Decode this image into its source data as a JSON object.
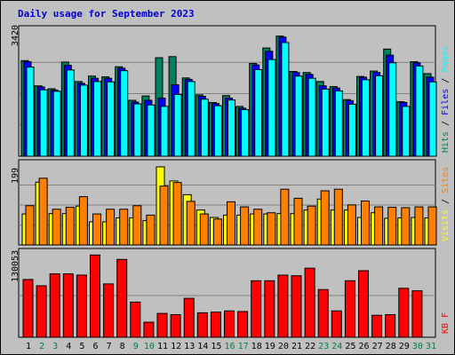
{
  "chart_data": {
    "type": "bar",
    "title": "Daily usage for September 2023",
    "x": [
      "1",
      "2",
      "3",
      "4",
      "5",
      "6",
      "7",
      "8",
      "9",
      "10",
      "11",
      "12",
      "13",
      "14",
      "15",
      "16",
      "17",
      "18",
      "19",
      "20",
      "21",
      "22",
      "23",
      "24",
      "25",
      "26",
      "27",
      "28",
      "29",
      "30",
      "31"
    ],
    "weekend_days": [
      2,
      3,
      9,
      10,
      16,
      17,
      23,
      24,
      30,
      31
    ],
    "colors": {
      "hits": "#00805c",
      "files": "#0000ff",
      "pages": "#00ffff",
      "visits": "#ffff00",
      "sites": "#ff8000",
      "kbytes": "#ff0000",
      "weekday_label": "#000000",
      "weekend_label": "#008040"
    },
    "panels": [
      {
        "ymax_label": "3420",
        "ylim": [
          0,
          3420
        ],
        "side_labels": [
          {
            "text": "Hits",
            "color": "#00805c"
          },
          {
            "text": "Files",
            "color": "#0000ff"
          },
          {
            "text": "Pages",
            "color": "#00ffff"
          }
        ],
        "series": [
          {
            "name": "Hits",
            "color": "#00805c",
            "values": [
              2650,
              1950,
              1870,
              2610,
              2070,
              2220,
              2200,
              2480,
              1550,
              1670,
              2730,
              2760,
              2170,
              1700,
              1490,
              1680,
              1380,
              2570,
              3000,
              3330,
              2350,
              2320,
              2070,
              1930,
              1570,
              2210,
              2360,
              2970,
              1510,
              2620,
              2290
            ]
          },
          {
            "name": "Files",
            "color": "#0000ff",
            "values": [
              2620,
              1920,
              1830,
              2520,
              2020,
              2160,
              2160,
              2440,
              1500,
              1550,
              1610,
              1980,
              2130,
              1660,
              1460,
              1610,
              1330,
              2530,
              2910,
              3300,
              2320,
              2270,
              1950,
              1890,
              1540,
              2190,
              2320,
              2800,
              1490,
              2590,
              2190
            ]
          },
          {
            "name": "Pages",
            "color": "#00ffff",
            "values": [
              2470,
              1840,
              1800,
              2390,
              1970,
              2070,
              2060,
              2370,
              1450,
              1420,
              1380,
              1710,
              2070,
              1580,
              1400,
              1560,
              1290,
              2400,
              2680,
              3150,
              2220,
              2160,
              1860,
              1810,
              1440,
              2120,
              2230,
              2590,
              1380,
              2500,
              2060
            ]
          }
        ]
      },
      {
        "ymax_label": "199",
        "ylim": [
          0,
          199
        ],
        "side_labels": [
          {
            "text": "Visits",
            "color": "#ffff00"
          },
          {
            "text": "Sites",
            "color": "#ff8000"
          }
        ],
        "series": [
          {
            "name": "Visits",
            "color": "#ffff00",
            "values": [
              79,
              160,
              80,
              80,
              99,
              59,
              59,
              69,
              69,
              62,
              199,
              163,
              128,
              89,
              70,
              76,
              76,
              79,
              79,
              80,
              80,
              89,
              117,
              89,
              89,
              70,
              82,
              68,
              69,
              70,
              69
            ]
          },
          {
            "name": "Sites",
            "color": "#ff8000",
            "values": [
              100,
              170,
              91,
              96,
              123,
              79,
              91,
              91,
              100,
              76,
              150,
              159,
              111,
              79,
              66,
              110,
              97,
              91,
              82,
              142,
              119,
              99,
              138,
              142,
              102,
              112,
              97,
              96,
              95,
              97,
              97
            ]
          }
        ]
      },
      {
        "ymax_label": "130053",
        "ylim": [
          0,
          130053
        ],
        "side_labels": [
          {
            "text": "KB F",
            "color": "#ff0000"
          }
        ],
        "series": [
          {
            "name": "KB F",
            "color": "#ff0000",
            "values": [
              92000,
              82000,
              101000,
              101000,
              99000,
              131000,
              85000,
              124000,
              56000,
              24000,
              38000,
              36000,
              62000,
              39000,
              40000,
              42000,
              41000,
              90000,
              90000,
              99000,
              98000,
              110000,
              76000,
              42000,
              90000,
              106000,
              35000,
              36000,
              78000,
              74000,
              0
            ]
          }
        ]
      }
    ]
  }
}
